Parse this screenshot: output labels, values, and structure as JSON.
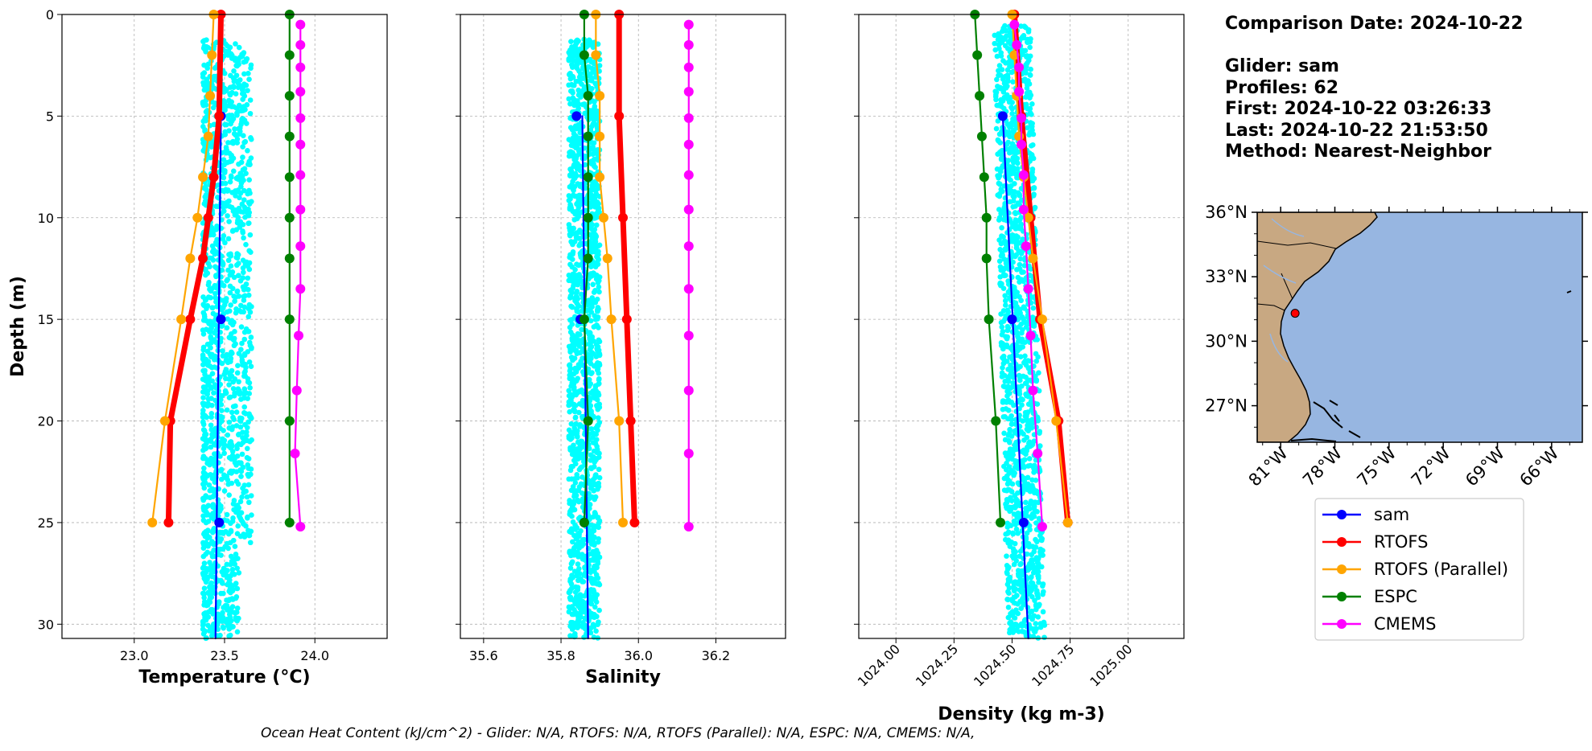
{
  "info": {
    "comparison_date": "Comparison Date: 2024-10-22",
    "glider": "Glider: sam",
    "profiles": "Profiles: 62",
    "first": "First: 2024-10-22 03:26:33",
    "last": "Last: 2024-10-22 21:53:50",
    "method": "Method: Nearest-Neighbor"
  },
  "footer": "Ocean Heat Content (kJ/cm^2) - Glider: N/A,  RTOFS: N/A,  RTOFS (Parallel): N/A,  ESPC: N/A,  CMEMS: N/A,",
  "colors": {
    "glider_scatter": "#00ffff",
    "sam": "#0000ff",
    "RTOFS": "#ff0000",
    "RTOFS (Parallel)": "#ffa500",
    "ESPC": "#008000",
    "CMEMS": "#ff00ff",
    "land": "#c8a882",
    "ocean": "#97b6e1"
  },
  "legend": {
    "entries": [
      "sam",
      "RTOFS",
      "RTOFS (Parallel)",
      "ESPC",
      "CMEMS"
    ]
  },
  "map": {
    "lat_ticks": [
      "36°N",
      "33°N",
      "30°N",
      "27°N"
    ],
    "lon_ticks": [
      "81°W",
      "78°W",
      "75°W",
      "72°W",
      "69°W",
      "66°W"
    ],
    "glider_position": {
      "lat": 31.3,
      "lon": -80.2
    }
  },
  "chart_data": [
    {
      "type": "line",
      "xlabel": "Temperature (°C)",
      "ylabel": "Depth (m)",
      "xlim": [
        22.6,
        24.4
      ],
      "ylim": [
        30.7,
        0
      ],
      "xticks": [
        23.0,
        23.5,
        24.0
      ],
      "yticks": [
        0,
        5,
        10,
        15,
        20,
        25,
        30
      ],
      "grid": true,
      "scatter_range": {
        "min": 23.38,
        "max": 23.65,
        "depth_min": 1.2,
        "depth_max": 30.7
      },
      "series": [
        {
          "name": "sam",
          "depth": [
            5,
            15,
            25
          ],
          "values": [
            23.48,
            23.48,
            23.47
          ],
          "line_depth": [
            5,
            30.7
          ],
          "line_values": [
            23.48,
            23.45
          ]
        },
        {
          "name": "RTOFS",
          "depth": [
            0,
            5,
            8,
            10,
            12,
            15,
            20,
            25
          ],
          "values": [
            23.48,
            23.47,
            23.44,
            23.41,
            23.38,
            23.31,
            23.2,
            23.19
          ]
        },
        {
          "name": "RTOFS (Parallel)",
          "depth": [
            0,
            2,
            4,
            6,
            8,
            10,
            12,
            15,
            20,
            25
          ],
          "values": [
            23.44,
            23.43,
            23.42,
            23.41,
            23.38,
            23.35,
            23.31,
            23.26,
            23.17,
            23.1
          ]
        },
        {
          "name": "ESPC",
          "depth": [
            0,
            2,
            4,
            6,
            8,
            10,
            12,
            15,
            20,
            25
          ],
          "values": [
            23.86,
            23.86,
            23.86,
            23.86,
            23.86,
            23.86,
            23.86,
            23.86,
            23.86,
            23.86
          ]
        },
        {
          "name": "CMEMS",
          "depth": [
            0.5,
            1.5,
            2.6,
            3.8,
            5.1,
            6.4,
            7.9,
            9.6,
            11.4,
            13.5,
            15.8,
            18.5,
            21.6,
            25.2
          ],
          "values": [
            23.92,
            23.92,
            23.92,
            23.92,
            23.92,
            23.92,
            23.92,
            23.92,
            23.92,
            23.92,
            23.91,
            23.9,
            23.89,
            23.92
          ]
        }
      ]
    },
    {
      "type": "line",
      "xlabel": "Salinity",
      "ylabel": "",
      "xlim": [
        35.54,
        36.38
      ],
      "ylim": [
        30.7,
        0
      ],
      "xticks": [
        35.6,
        35.8,
        36.0,
        36.2
      ],
      "yticks": [
        0,
        5,
        10,
        15,
        20,
        25,
        30
      ],
      "grid": true,
      "scatter_range": {
        "min": 35.82,
        "max": 35.9,
        "depth_min": 1.2,
        "depth_max": 30.7
      },
      "series": [
        {
          "name": "sam",
          "depth": [
            5,
            15,
            25
          ],
          "values": [
            35.84,
            35.85,
            35.86
          ],
          "line_depth": [
            5,
            30.7
          ],
          "line_values": [
            35.855,
            35.87
          ]
        },
        {
          "name": "RTOFS",
          "depth": [
            0,
            5,
            10,
            15,
            20,
            25
          ],
          "values": [
            35.95,
            35.95,
            35.96,
            35.97,
            35.98,
            35.99
          ]
        },
        {
          "name": "RTOFS (Parallel)",
          "depth": [
            0,
            2,
            4,
            6,
            8,
            10,
            12,
            15,
            20,
            25
          ],
          "values": [
            35.89,
            35.89,
            35.9,
            35.9,
            35.9,
            35.91,
            35.92,
            35.93,
            35.95,
            35.96
          ]
        },
        {
          "name": "ESPC",
          "depth": [
            0,
            2,
            4,
            6,
            8,
            10,
            12,
            15,
            20,
            25
          ],
          "values": [
            35.86,
            35.86,
            35.87,
            35.87,
            35.87,
            35.87,
            35.87,
            35.86,
            35.87,
            35.86
          ]
        },
        {
          "name": "CMEMS",
          "depth": [
            0.5,
            1.5,
            2.6,
            3.8,
            5.1,
            6.4,
            7.9,
            9.6,
            11.4,
            13.5,
            15.8,
            18.5,
            21.6,
            25.2
          ],
          "values": [
            36.13,
            36.13,
            36.13,
            36.13,
            36.13,
            36.13,
            36.13,
            36.13,
            36.13,
            36.13,
            36.13,
            36.13,
            36.13,
            36.13
          ]
        }
      ]
    },
    {
      "type": "line",
      "xlabel": "Density (kg m-3)",
      "ylabel": "",
      "xlim": [
        1023.84,
        1025.24
      ],
      "ylim": [
        30.7,
        0
      ],
      "xticks": [
        1024.0,
        1024.25,
        1024.5,
        1024.75,
        1025.0
      ],
      "xtick_labels": [
        "1024.00",
        "1024.25",
        "1024.50",
        "1024.75",
        "1025.00"
      ],
      "yticks": [
        0,
        5,
        10,
        15,
        20,
        25,
        30
      ],
      "grid": true,
      "scatter_range": {
        "min": 1024.42,
        "max": 1024.58,
        "depth_min": 0.5,
        "depth_max": 30.7,
        "drift": 0.06
      },
      "series": [
        {
          "name": "sam",
          "depth": [
            5,
            15,
            25
          ],
          "values": [
            1024.46,
            1024.5,
            1024.55
          ],
          "line_depth": [
            5,
            30.7
          ],
          "line_values": [
            1024.46,
            1024.57
          ]
        },
        {
          "name": "RTOFS",
          "depth": [
            0,
            5,
            10,
            15,
            20,
            25
          ],
          "values": [
            1024.51,
            1024.54,
            1024.58,
            1024.62,
            1024.7,
            1024.74
          ]
        },
        {
          "name": "RTOFS (Parallel)",
          "depth": [
            0,
            2,
            4,
            6,
            8,
            10,
            12,
            15,
            20,
            25
          ],
          "values": [
            1024.5,
            1024.51,
            1024.52,
            1024.53,
            1024.55,
            1024.57,
            1024.59,
            1024.63,
            1024.69,
            1024.74
          ]
        },
        {
          "name": "ESPC",
          "depth": [
            0,
            2,
            4,
            6,
            8,
            10,
            12,
            15,
            20,
            25
          ],
          "values": [
            1024.34,
            1024.35,
            1024.36,
            1024.37,
            1024.38,
            1024.39,
            1024.39,
            1024.4,
            1024.43,
            1024.45
          ]
        },
        {
          "name": "CMEMS",
          "depth": [
            0.5,
            1.5,
            2.6,
            3.8,
            5.1,
            6.4,
            7.9,
            9.6,
            11.4,
            13.5,
            15.8,
            18.5,
            21.6,
            25.2
          ],
          "values": [
            1024.51,
            1024.52,
            1024.53,
            1024.53,
            1024.54,
            1024.54,
            1024.55,
            1024.55,
            1024.56,
            1024.57,
            1024.58,
            1024.59,
            1024.61,
            1024.63
          ]
        }
      ]
    }
  ]
}
